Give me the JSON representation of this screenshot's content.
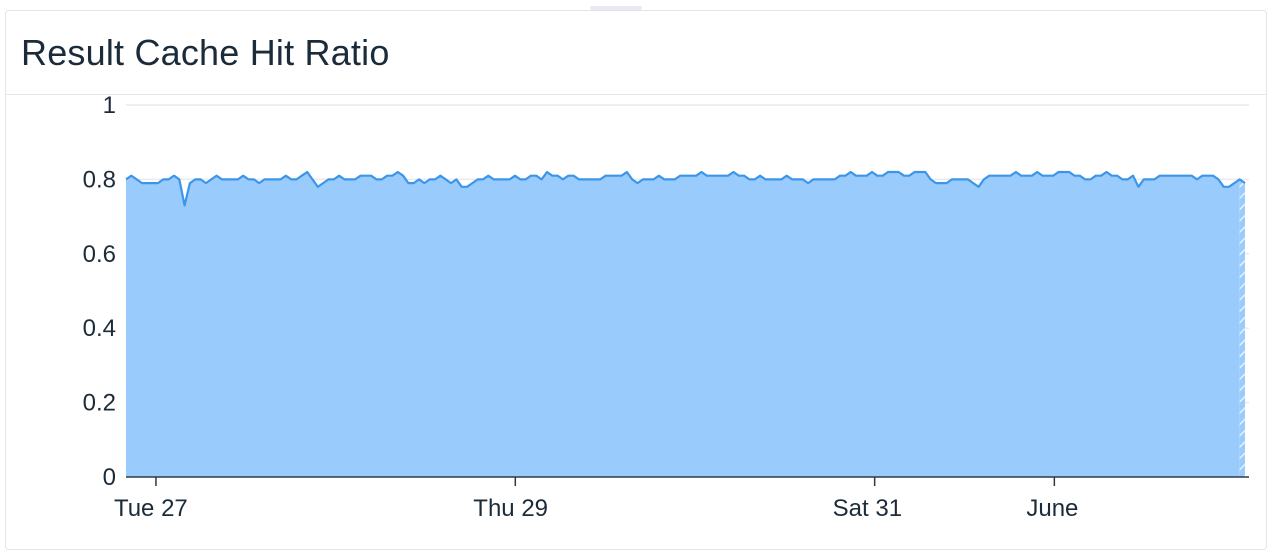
{
  "widget": {
    "title": "Result Cache Hit Ratio"
  },
  "colors": {
    "area_fill": "#99ccfc",
    "line": "#3d95e8",
    "gridline": "#e8eaef",
    "axis": "#2a3a4a"
  },
  "chart_data": {
    "type": "area",
    "title": "Result Cache Hit Ratio",
    "xlabel": "",
    "ylabel": "",
    "ylim": [
      0,
      1
    ],
    "y_ticks": [
      "0",
      "0.2",
      "0.4",
      "0.6",
      "0.8",
      "1"
    ],
    "x_range": [
      "May 26 20:00",
      "Jun 2 02:00"
    ],
    "x_ticks": [
      {
        "label": "Tue 27",
        "t": "May 27 00:00"
      },
      {
        "label": "Thu 29",
        "t": "May 29 00:00"
      },
      {
        "label": "Sat 31",
        "t": "May 31 00:00"
      },
      {
        "label": "June",
        "t": "Jun 1 00:00"
      }
    ],
    "grid": true,
    "series": [
      {
        "values": [
          0.8,
          0.81,
          0.8,
          0.79,
          0.79,
          0.79,
          0.79,
          0.8,
          0.8,
          0.81,
          0.8,
          0.73,
          0.79,
          0.8,
          0.8,
          0.79,
          0.8,
          0.81,
          0.8,
          0.8,
          0.8,
          0.8,
          0.81,
          0.8,
          0.8,
          0.79,
          0.8,
          0.8,
          0.8,
          0.8,
          0.81,
          0.8,
          0.8,
          0.81,
          0.82,
          0.8,
          0.78,
          0.79,
          0.8,
          0.8,
          0.81,
          0.8,
          0.8,
          0.8,
          0.81,
          0.81,
          0.81,
          0.8,
          0.8,
          0.81,
          0.81,
          0.82,
          0.81,
          0.79,
          0.79,
          0.8,
          0.79,
          0.8,
          0.8,
          0.81,
          0.8,
          0.79,
          0.8,
          0.78,
          0.78,
          0.79,
          0.8,
          0.8,
          0.81,
          0.8,
          0.8,
          0.8,
          0.8,
          0.81,
          0.8,
          0.8,
          0.81,
          0.81,
          0.8,
          0.82,
          0.81,
          0.81,
          0.8,
          0.81,
          0.81,
          0.8,
          0.8,
          0.8,
          0.8,
          0.8,
          0.81,
          0.81,
          0.81,
          0.81,
          0.82,
          0.8,
          0.79,
          0.8,
          0.8,
          0.8,
          0.81,
          0.8,
          0.8,
          0.8,
          0.81,
          0.81,
          0.81,
          0.81,
          0.82,
          0.81,
          0.81,
          0.81,
          0.81,
          0.81,
          0.82,
          0.81,
          0.81,
          0.8,
          0.8,
          0.81,
          0.8,
          0.8,
          0.8,
          0.8,
          0.81,
          0.8,
          0.8,
          0.8,
          0.79,
          0.8,
          0.8,
          0.8,
          0.8,
          0.8,
          0.81,
          0.81,
          0.82,
          0.81,
          0.81,
          0.81,
          0.82,
          0.81,
          0.81,
          0.82,
          0.82,
          0.82,
          0.81,
          0.81,
          0.82,
          0.82,
          0.82,
          0.8,
          0.79,
          0.79,
          0.79,
          0.8,
          0.8,
          0.8,
          0.8,
          0.79,
          0.78,
          0.8,
          0.81,
          0.81,
          0.81,
          0.81,
          0.81,
          0.82,
          0.81,
          0.81,
          0.81,
          0.82,
          0.81,
          0.81,
          0.81,
          0.82,
          0.82,
          0.82,
          0.81,
          0.81,
          0.8,
          0.8,
          0.81,
          0.81,
          0.82,
          0.81,
          0.81,
          0.8,
          0.8,
          0.81,
          0.78,
          0.8,
          0.8,
          0.8,
          0.81,
          0.81,
          0.81,
          0.81,
          0.81,
          0.81,
          0.81,
          0.8,
          0.81,
          0.81,
          0.81,
          0.8,
          0.78,
          0.78,
          0.79,
          0.8,
          0.79
        ]
      }
    ],
    "last_segment_hatched": true
  }
}
